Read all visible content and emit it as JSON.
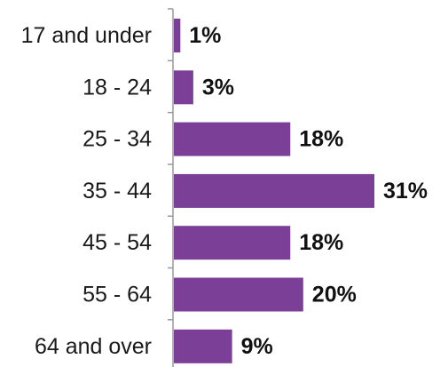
{
  "chart_data": {
    "type": "bar",
    "orientation": "horizontal",
    "categories": [
      "17 and under",
      "18 - 24",
      "25 - 34",
      "35 - 44",
      "45 - 54",
      "55 - 64",
      "64 and over"
    ],
    "values": [
      1,
      3,
      18,
      31,
      18,
      20,
      9
    ],
    "value_labels": [
      "1%",
      "3%",
      "18%",
      "31%",
      "18%",
      "20%",
      "9%"
    ],
    "unit": "%",
    "title": "",
    "xlabel": "",
    "ylabel": "",
    "xlim": [
      0,
      31
    ],
    "grid": false,
    "legend": "none",
    "bar_color": "#7b3f98",
    "axis_color": "#999999"
  }
}
